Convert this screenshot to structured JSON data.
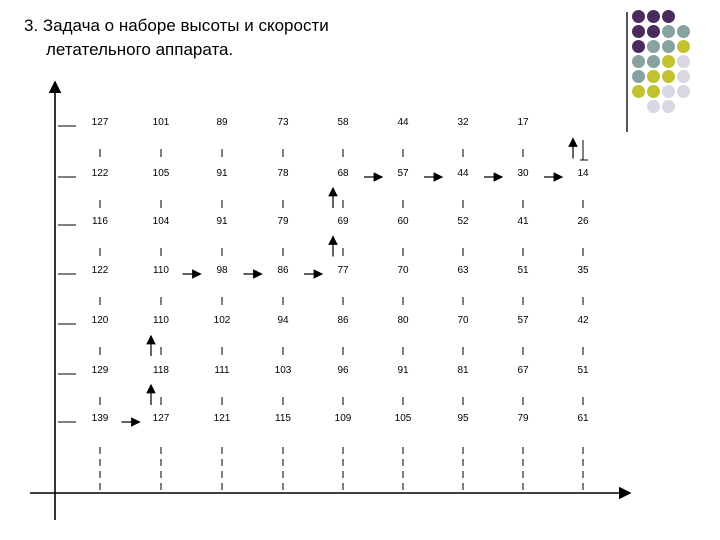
{
  "title": {
    "line1": "3. Задача о наборе высоты и скорости",
    "line2": "летательного аппарата."
  },
  "colors": {
    "purple": "#4b2a5e",
    "teal": "#86a3a0",
    "olive": "#c2c22f",
    "light": "#d8d8e3",
    "rule": "#555555"
  },
  "decoration_dots": [
    [
      "purple",
      "purple",
      "purple",
      null
    ],
    [
      "purple",
      "purple",
      "teal",
      "teal"
    ],
    [
      "purple",
      "teal",
      "teal",
      "olive"
    ],
    [
      "teal",
      "teal",
      "olive",
      "light"
    ],
    [
      "teal",
      "olive",
      "olive",
      "light"
    ],
    [
      "olive",
      "olive",
      "light",
      "light"
    ],
    [
      null,
      "light",
      "light",
      null
    ]
  ],
  "grid": {
    "rows": [
      [
        "127",
        "101",
        "89",
        "73",
        "58",
        "44",
        "32",
        "17"
      ],
      [
        "122",
        "105",
        "91",
        "78",
        "68",
        "57",
        "44",
        "30",
        "14"
      ],
      [
        "116",
        "104",
        "91",
        "79",
        "69",
        "60",
        "52",
        "41",
        "26"
      ],
      [
        "122",
        "110",
        "98",
        "86",
        "77",
        "70",
        "63",
        "51",
        "35"
      ],
      [
        "120",
        "110",
        "102",
        "94",
        "86",
        "80",
        "70",
        "57",
        "42"
      ],
      [
        "129",
        "118",
        "111",
        "103",
        "96",
        "91",
        "81",
        "67",
        "51"
      ],
      [
        "139",
        "127",
        "121",
        "115",
        "109",
        "105",
        "95",
        "79",
        "61"
      ]
    ],
    "arrows": [
      {
        "type": "right",
        "from_row": 6,
        "between_cols": [
          0,
          1
        ]
      },
      {
        "type": "up",
        "col": 1,
        "from_row": 6,
        "to_row": 5
      },
      {
        "type": "up",
        "col": 1,
        "from_row": 5,
        "to_row": 4
      },
      {
        "type": "right",
        "from_row": 3,
        "between_cols": [
          1,
          2
        ]
      },
      {
        "type": "right",
        "from_row": 3,
        "between_cols": [
          2,
          3
        ]
      },
      {
        "type": "right",
        "from_row": 3,
        "between_cols": [
          3,
          4
        ]
      },
      {
        "type": "up",
        "col": 4,
        "from_row": 3,
        "to_row": 2
      },
      {
        "type": "up",
        "col": 4,
        "from_row": 2,
        "to_row": 1
      },
      {
        "type": "right",
        "from_row": 1,
        "between_cols": [
          4,
          5
        ]
      },
      {
        "type": "right",
        "from_row": 1,
        "between_cols": [
          5,
          6
        ]
      },
      {
        "type": "right",
        "from_row": 1,
        "between_cols": [
          6,
          7
        ]
      },
      {
        "type": "right",
        "from_row": 1,
        "between_cols": [
          7,
          8
        ]
      },
      {
        "type": "up",
        "col": 8,
        "from_row": 1,
        "to_row": 0
      }
    ]
  }
}
